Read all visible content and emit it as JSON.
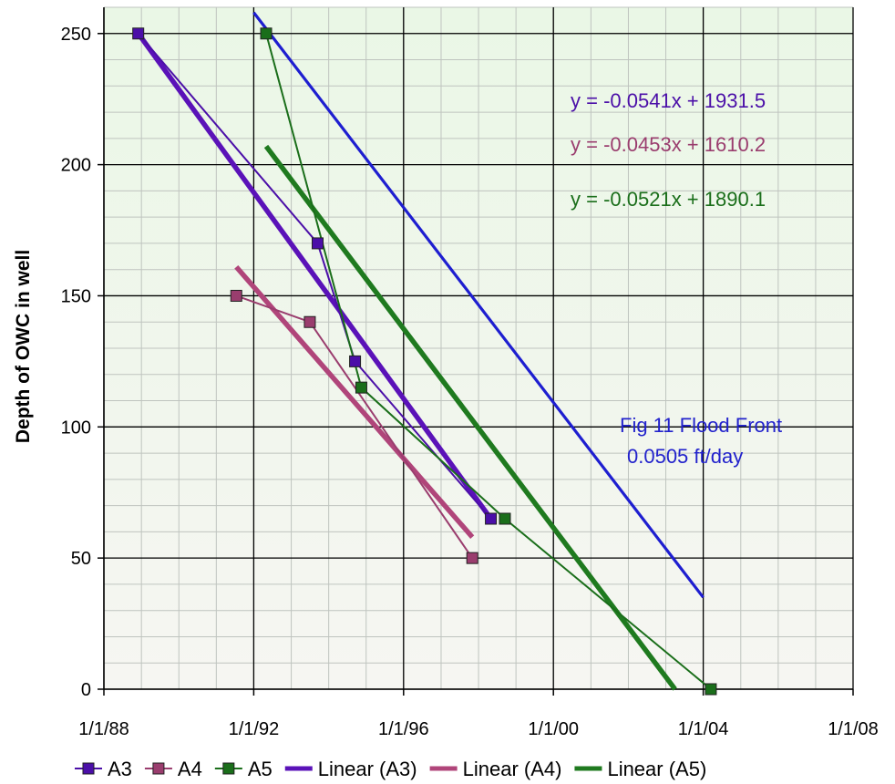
{
  "chart_data": {
    "type": "scatter",
    "ylabel": "Depth of OWC in well",
    "xlabel": "",
    "x_tick_labels": [
      "1/1/88",
      "1/1/92",
      "1/1/96",
      "1/1/00",
      "1/1/04",
      "1/1/08"
    ],
    "x_ticks": [
      "1988-01-01",
      "1992-01-01",
      "1996-01-01",
      "2000-01-01",
      "2004-01-01",
      "2008-01-01"
    ],
    "xlim": [
      "1988-01-01",
      "2008-01-01"
    ],
    "ylim": [
      0,
      260
    ],
    "y_ticks": [
      0,
      50,
      100,
      150,
      200,
      250
    ],
    "grid": true,
    "legend_position": "bottom",
    "series": [
      {
        "name": "A3",
        "kind": "line-markers",
        "color": "#4B0FA8",
        "points": [
          [
            "1988-12-01",
            250
          ],
          [
            "1993-09-15",
            170
          ],
          [
            "1994-09-15",
            125
          ],
          [
            "1998-05-01",
            65
          ]
        ]
      },
      {
        "name": "A4",
        "kind": "line-markers",
        "color": "#9A3D6E",
        "points": [
          [
            "1991-07-15",
            150
          ],
          [
            "1993-07-01",
            140
          ],
          [
            "1997-11-01",
            50
          ]
        ]
      },
      {
        "name": "A5",
        "kind": "line-markers",
        "color": "#1A6E1A",
        "points": [
          [
            "1992-05-01",
            250
          ],
          [
            "1994-11-15",
            115
          ],
          [
            "1998-09-15",
            65
          ],
          [
            "2004-03-15",
            0
          ]
        ]
      },
      {
        "name": "Linear (A3)",
        "kind": "trendline",
        "color": "#5A12B8",
        "points": [
          [
            "1988-12-01",
            250
          ],
          [
            "1998-05-01",
            65
          ]
        ]
      },
      {
        "name": "Linear (A4)",
        "kind": "trendline",
        "color": "#B0457A",
        "points": [
          [
            "1991-07-15",
            161
          ],
          [
            "1997-11-01",
            58
          ]
        ]
      },
      {
        "name": "Linear (A5)",
        "kind": "trendline",
        "color": "#1F7A1F",
        "points": [
          [
            "1992-05-01",
            207
          ],
          [
            "2003-04-01",
            0
          ]
        ]
      }
    ],
    "extra_lines": [
      {
        "color": "#1E1ED0",
        "points": [
          [
            "1992-01-01",
            258
          ],
          [
            "2004-01-01",
            35
          ]
        ]
      }
    ],
    "annotations": [
      {
        "text": "y = -0.0541x + 1931.5",
        "color": "#4B0FA8"
      },
      {
        "text": "y = -0.0453x + 1610.2",
        "color": "#9A3D6E"
      },
      {
        "text": "y = -0.0521x + 1890.1",
        "color": "#1A6E1A"
      },
      {
        "text": "Fig 11 Flood Front",
        "color": "#2222CC"
      },
      {
        "text": "0.0505 ft/day",
        "color": "#2222CC"
      }
    ]
  }
}
